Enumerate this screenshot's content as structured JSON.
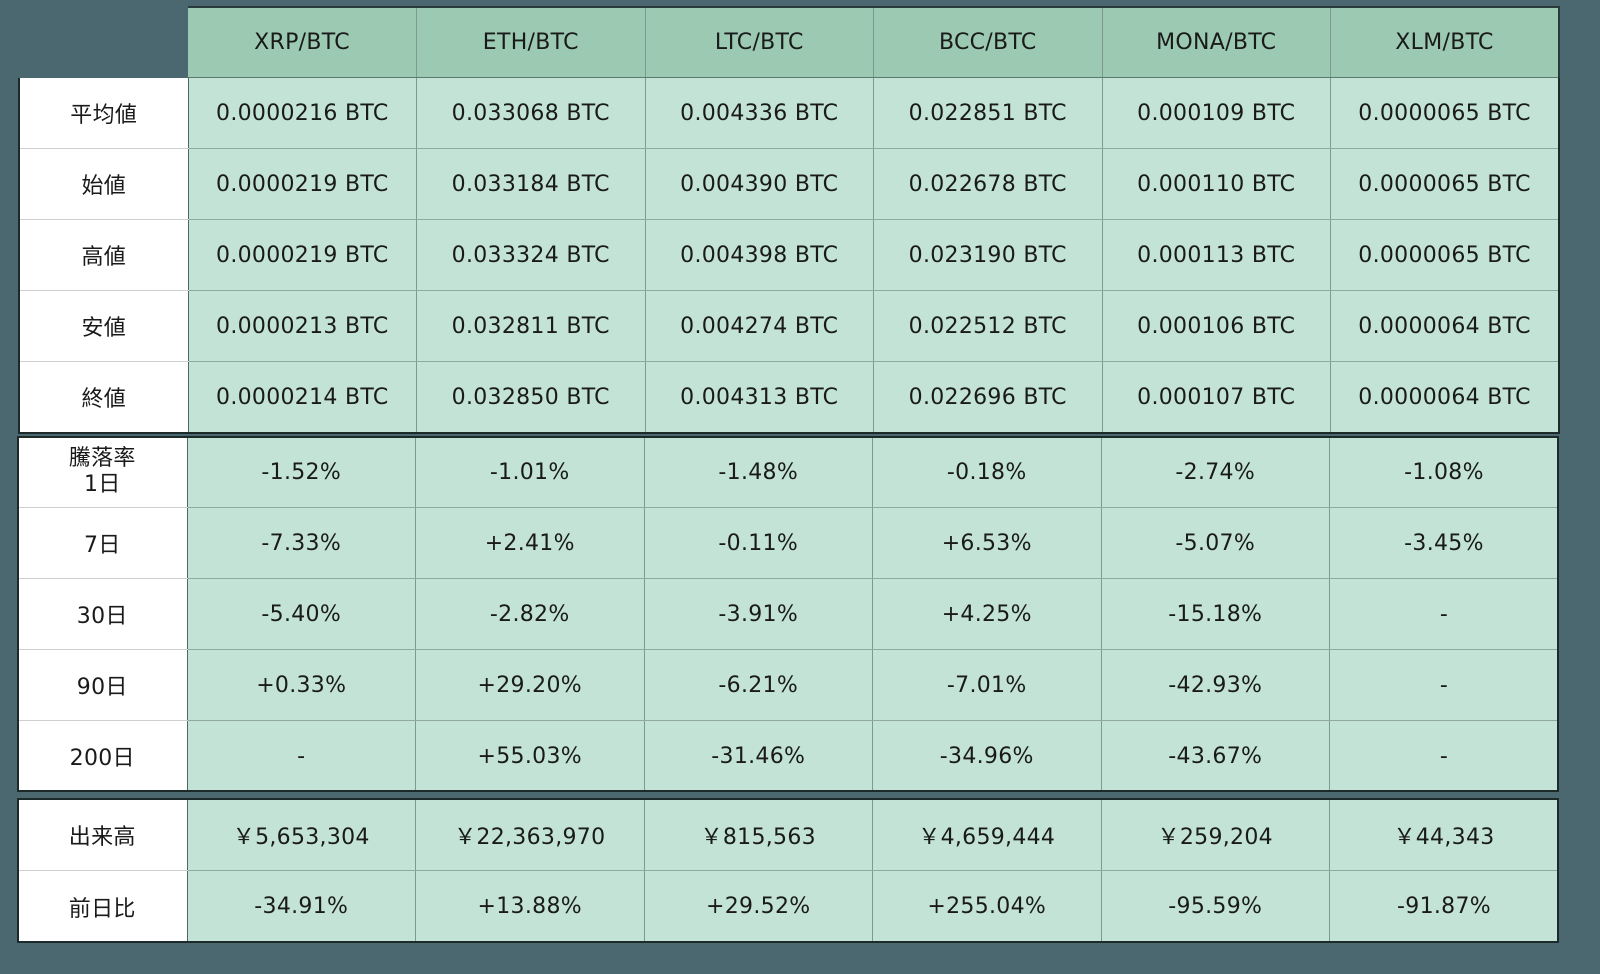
{
  "colors": {
    "background": "#4b6770",
    "header_fill": "#9bc9b2",
    "cell_fill": "#c2e3d6",
    "label_fill": "#ffffff"
  },
  "pairs": [
    "XRP/BTC",
    "ETH/BTC",
    "LTC/BTC",
    "BCC/BTC",
    "MONA/BTC",
    "XLM/BTC"
  ],
  "prices": {
    "rows": [
      {
        "label": "平均値",
        "values": [
          "0.0000216 BTC",
          "0.033068 BTC",
          "0.004336 BTC",
          "0.022851 BTC",
          "0.000109 BTC",
          "0.0000065 BTC"
        ]
      },
      {
        "label": "始値",
        "values": [
          "0.0000219 BTC",
          "0.033184 BTC",
          "0.004390 BTC",
          "0.022678 BTC",
          "0.000110 BTC",
          "0.0000065 BTC"
        ]
      },
      {
        "label": "高値",
        "values": [
          "0.0000219 BTC",
          "0.033324 BTC",
          "0.004398 BTC",
          "0.023190 BTC",
          "0.000113 BTC",
          "0.0000065 BTC"
        ]
      },
      {
        "label": "安値",
        "values": [
          "0.0000213 BTC",
          "0.032811 BTC",
          "0.004274 BTC",
          "0.022512 BTC",
          "0.000106 BTC",
          "0.0000064 BTC"
        ]
      },
      {
        "label": "終値",
        "values": [
          "0.0000214 BTC",
          "0.032850 BTC",
          "0.004313 BTC",
          "0.022696 BTC",
          "0.000107 BTC",
          "0.0000064 BTC"
        ]
      }
    ]
  },
  "change": {
    "title": "騰落率",
    "rows": [
      {
        "label": "1日",
        "values": [
          "-1.52%",
          "-1.01%",
          "-1.48%",
          "-0.18%",
          "-2.74%",
          "-1.08%"
        ]
      },
      {
        "label": "7日",
        "values": [
          "-7.33%",
          "+2.41%",
          "-0.11%",
          "+6.53%",
          "-5.07%",
          "-3.45%"
        ]
      },
      {
        "label": "30日",
        "values": [
          "-5.40%",
          "-2.82%",
          "-3.91%",
          "+4.25%",
          "-15.18%",
          "-"
        ]
      },
      {
        "label": "90日",
        "values": [
          "+0.33%",
          "+29.20%",
          "-6.21%",
          "-7.01%",
          "-42.93%",
          "-"
        ]
      },
      {
        "label": "200日",
        "values": [
          "-",
          "+55.03%",
          "-31.46%",
          "-34.96%",
          "-43.67%",
          "-"
        ]
      }
    ]
  },
  "volume": {
    "rows": [
      {
        "label": "出来高",
        "values": [
          "￥5,653,304",
          "￥22,363,970",
          "￥815,563",
          "￥4,659,444",
          "￥259,204",
          "￥44,343"
        ]
      },
      {
        "label": "前日比",
        "values": [
          "-34.91%",
          "+13.88%",
          "+29.52%",
          "+255.04%",
          "-95.59%",
          "-91.87%"
        ]
      }
    ]
  }
}
